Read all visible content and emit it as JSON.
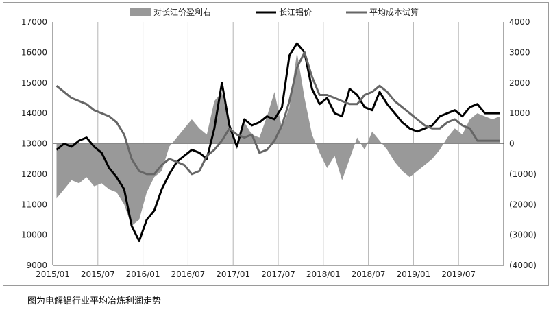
{
  "chart_data": {
    "type": "line",
    "title": "",
    "legend": {
      "placement": "top",
      "entries": [
        "对长江价盈利右",
        "长江铝价",
        "平均成本试算"
      ]
    },
    "x_ticks": [
      "2015/01",
      "2015/07",
      "2016/01",
      "2016/07",
      "2017/01",
      "2017/07",
      "2018/01",
      "2018/07",
      "2019/01",
      "2019/07"
    ],
    "y_left": {
      "ylim": [
        9000,
        17000
      ],
      "ticks": [
        "9000",
        "10000",
        "11000",
        "12000",
        "13000",
        "14000",
        "15000",
        "16000",
        "17000"
      ]
    },
    "y_right": {
      "ylim": [
        -4000,
        4000
      ],
      "ticks": [
        "(4000)",
        "(3000)",
        "(2000)",
        "(1000)",
        "0",
        "1000",
        "2000",
        "3000",
        "4000"
      ]
    },
    "grid": "vertical",
    "x_range": [
      "2015/01",
      "2019/12"
    ],
    "series": [
      {
        "name": "对长江价盈利右",
        "kind": "area",
        "axis": "right",
        "color": "#999999",
        "points": [
          [
            "2015/01",
            -1800
          ],
          [
            "2015/02",
            -1500
          ],
          [
            "2015/03",
            -1200
          ],
          [
            "2015/04",
            -1300
          ],
          [
            "2015/05",
            -1100
          ],
          [
            "2015/06",
            -1400
          ],
          [
            "2015/07",
            -1300
          ],
          [
            "2015/08",
            -1500
          ],
          [
            "2015/09",
            -1600
          ],
          [
            "2015/10",
            -2000
          ],
          [
            "2015/11",
            -2700
          ],
          [
            "2015/12",
            -2500
          ],
          [
            "2016/01",
            -1600
          ],
          [
            "2016/02",
            -1100
          ],
          [
            "2016/03",
            -900
          ],
          [
            "2016/04",
            -100
          ],
          [
            "2016/05",
            200
          ],
          [
            "2016/06",
            500
          ],
          [
            "2016/07",
            800
          ],
          [
            "2016/08",
            500
          ],
          [
            "2016/09",
            300
          ],
          [
            "2016/10",
            1400
          ],
          [
            "2016/11",
            1700
          ],
          [
            "2016/12",
            600
          ],
          [
            "2017/01",
            -200
          ],
          [
            "2017/02",
            700
          ],
          [
            "2017/03",
            300
          ],
          [
            "2017/04",
            200
          ],
          [
            "2017/05",
            900
          ],
          [
            "2017/06",
            1700
          ],
          [
            "2017/07",
            500
          ],
          [
            "2017/08",
            1200
          ],
          [
            "2017/09",
            3000
          ],
          [
            "2017/10",
            1500
          ],
          [
            "2017/11",
            300
          ],
          [
            "2017/12",
            -300
          ],
          [
            "2018/01",
            -800
          ],
          [
            "2018/02",
            -400
          ],
          [
            "2018/03",
            -1200
          ],
          [
            "2018/04",
            -500
          ],
          [
            "2018/05",
            200
          ],
          [
            "2018/06",
            -200
          ],
          [
            "2018/07",
            400
          ],
          [
            "2018/08",
            100
          ],
          [
            "2018/09",
            -200
          ],
          [
            "2018/10",
            -600
          ],
          [
            "2018/11",
            -900
          ],
          [
            "2018/12",
            -1100
          ],
          [
            "2019/01",
            -900
          ],
          [
            "2019/02",
            -700
          ],
          [
            "2019/03",
            -500
          ],
          [
            "2019/04",
            -200
          ],
          [
            "2019/05",
            200
          ],
          [
            "2019/06",
            500
          ],
          [
            "2019/07",
            300
          ],
          [
            "2019/08",
            800
          ],
          [
            "2019/09",
            1000
          ],
          [
            "2019/10",
            900
          ],
          [
            "2019/11",
            800
          ],
          [
            "2019/12",
            900
          ]
        ]
      },
      {
        "name": "长江铝价",
        "kind": "line",
        "axis": "left",
        "color": "#000000",
        "points": [
          [
            "2015/01",
            12800
          ],
          [
            "2015/02",
            13000
          ],
          [
            "2015/03",
            12900
          ],
          [
            "2015/04",
            13100
          ],
          [
            "2015/05",
            13200
          ],
          [
            "2015/06",
            12900
          ],
          [
            "2015/07",
            12700
          ],
          [
            "2015/08",
            12200
          ],
          [
            "2015/09",
            11900
          ],
          [
            "2015/10",
            11500
          ],
          [
            "2015/11",
            10300
          ],
          [
            "2015/12",
            9800
          ],
          [
            "2016/01",
            10500
          ],
          [
            "2016/02",
            10800
          ],
          [
            "2016/03",
            11500
          ],
          [
            "2016/04",
            12000
          ],
          [
            "2016/05",
            12400
          ],
          [
            "2016/06",
            12600
          ],
          [
            "2016/07",
            12800
          ],
          [
            "2016/08",
            12700
          ],
          [
            "2016/09",
            12500
          ],
          [
            "2016/10",
            13500
          ],
          [
            "2016/11",
            15000
          ],
          [
            "2016/12",
            13600
          ],
          [
            "2017/01",
            12900
          ],
          [
            "2017/02",
            13800
          ],
          [
            "2017/03",
            13600
          ],
          [
            "2017/04",
            13700
          ],
          [
            "2017/05",
            13900
          ],
          [
            "2017/06",
            13800
          ],
          [
            "2017/07",
            14200
          ],
          [
            "2017/08",
            15900
          ],
          [
            "2017/09",
            16300
          ],
          [
            "2017/10",
            16000
          ],
          [
            "2017/11",
            14800
          ],
          [
            "2017/12",
            14300
          ],
          [
            "2018/01",
            14500
          ],
          [
            "2018/02",
            14000
          ],
          [
            "2018/03",
            13900
          ],
          [
            "2018/04",
            14800
          ],
          [
            "2018/05",
            14600
          ],
          [
            "2018/06",
            14200
          ],
          [
            "2018/07",
            14100
          ],
          [
            "2018/08",
            14700
          ],
          [
            "2018/09",
            14300
          ],
          [
            "2018/10",
            14000
          ],
          [
            "2018/11",
            13700
          ],
          [
            "2018/12",
            13500
          ],
          [
            "2019/01",
            13400
          ],
          [
            "2019/02",
            13500
          ],
          [
            "2019/03",
            13600
          ],
          [
            "2019/04",
            13900
          ],
          [
            "2019/05",
            14000
          ],
          [
            "2019/06",
            14100
          ],
          [
            "2019/07",
            13900
          ],
          [
            "2019/08",
            14200
          ],
          [
            "2019/09",
            14300
          ],
          [
            "2019/10",
            14000
          ],
          [
            "2019/11",
            14000
          ],
          [
            "2019/12",
            14000
          ]
        ]
      },
      {
        "name": "平均成本试算",
        "kind": "line",
        "axis": "left",
        "color": "#666666",
        "points": [
          [
            "2015/01",
            14900
          ],
          [
            "2015/02",
            14700
          ],
          [
            "2015/03",
            14500
          ],
          [
            "2015/04",
            14400
          ],
          [
            "2015/05",
            14300
          ],
          [
            "2015/06",
            14100
          ],
          [
            "2015/07",
            14000
          ],
          [
            "2015/08",
            13900
          ],
          [
            "2015/09",
            13700
          ],
          [
            "2015/10",
            13300
          ],
          [
            "2015/11",
            12500
          ],
          [
            "2015/12",
            12100
          ],
          [
            "2016/01",
            12000
          ],
          [
            "2016/02",
            12000
          ],
          [
            "2016/03",
            12300
          ],
          [
            "2016/04",
            12500
          ],
          [
            "2016/05",
            12400
          ],
          [
            "2016/06",
            12300
          ],
          [
            "2016/07",
            12000
          ],
          [
            "2016/08",
            12100
          ],
          [
            "2016/09",
            12600
          ],
          [
            "2016/10",
            12800
          ],
          [
            "2016/11",
            13100
          ],
          [
            "2016/12",
            13500
          ],
          [
            "2017/01",
            13300
          ],
          [
            "2017/02",
            13200
          ],
          [
            "2017/03",
            13300
          ],
          [
            "2017/04",
            12700
          ],
          [
            "2017/05",
            12800
          ],
          [
            "2017/06",
            13100
          ],
          [
            "2017/07",
            13600
          ],
          [
            "2017/08",
            14400
          ],
          [
            "2017/09",
            15500
          ],
          [
            "2017/10",
            16000
          ],
          [
            "2017/11",
            15200
          ],
          [
            "2017/12",
            14600
          ],
          [
            "2018/01",
            14600
          ],
          [
            "2018/02",
            14500
          ],
          [
            "2018/03",
            14400
          ],
          [
            "2018/04",
            14300
          ],
          [
            "2018/05",
            14300
          ],
          [
            "2018/06",
            14600
          ],
          [
            "2018/07",
            14700
          ],
          [
            "2018/08",
            14900
          ],
          [
            "2018/09",
            14700
          ],
          [
            "2018/10",
            14400
          ],
          [
            "2018/11",
            14200
          ],
          [
            "2018/12",
            14000
          ],
          [
            "2019/01",
            13800
          ],
          [
            "2019/02",
            13600
          ],
          [
            "2019/03",
            13500
          ],
          [
            "2019/04",
            13500
          ],
          [
            "2019/05",
            13700
          ],
          [
            "2019/06",
            13800
          ],
          [
            "2019/07",
            13600
          ],
          [
            "2019/08",
            13500
          ],
          [
            "2019/09",
            13100
          ],
          [
            "2019/10",
            13100
          ],
          [
            "2019/11",
            13100
          ],
          [
            "2019/12",
            13100
          ]
        ]
      }
    ]
  },
  "caption": "图为电解铝行业平均冶炼利润走势"
}
